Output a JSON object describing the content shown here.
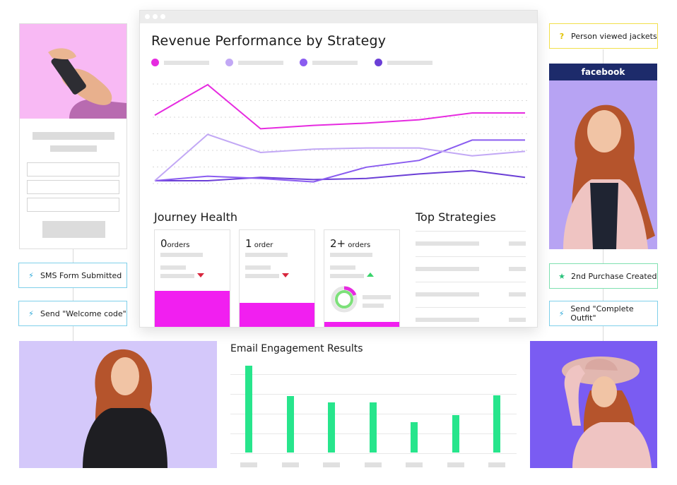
{
  "dashboard": {
    "title": "Revenue Performance by Strategy",
    "legend_colors": [
      "#e62be0",
      "#c2a8f5",
      "#8a5cf0",
      "#6b3fd6"
    ],
    "journey_title": "Journey Health",
    "top_title": "Top Strategies",
    "cards": [
      {
        "count": "0",
        "unit": "orders",
        "trend": "down"
      },
      {
        "count": "1",
        "unit": " order",
        "trend": "down"
      },
      {
        "count": "2+",
        "unit": " orders",
        "trend": "up"
      }
    ]
  },
  "triggers": {
    "left_1": "SMS Form Submitted",
    "left_2": "Send \"Welcome code\"",
    "right_top": "Person viewed jackets",
    "right_1": "2nd Purchase Created",
    "right_2": "Send \"Complete Outfit\""
  },
  "facebook_label": "facebook",
  "email": {
    "title": "Email Engagement Results"
  },
  "chart_data": {
    "type": "line",
    "title": "Revenue Performance by Strategy",
    "x": [
      1,
      2,
      3,
      4,
      5,
      6,
      7,
      8
    ],
    "series": [
      {
        "color": "#e62be0",
        "values": [
          68,
          95,
          56,
          59,
          61,
          64,
          70,
          70
        ]
      },
      {
        "color": "#c2a8f5",
        "values": [
          10,
          51,
          35,
          38,
          39,
          39,
          32,
          36
        ]
      },
      {
        "color": "#8a5cf0",
        "values": [
          10,
          14,
          12,
          9,
          22,
          28,
          46,
          46
        ]
      },
      {
        "color": "#6b3fd6",
        "values": [
          10,
          10,
          13,
          11,
          12,
          16,
          19,
          13
        ]
      }
    ],
    "ylim": [
      0,
      100
    ],
    "grid": true
  },
  "email_chart": {
    "type": "bar",
    "values": [
      97,
      63,
      56,
      56,
      34,
      42,
      64
    ],
    "ylim": [
      0,
      110
    ],
    "color": "#27e58c"
  }
}
